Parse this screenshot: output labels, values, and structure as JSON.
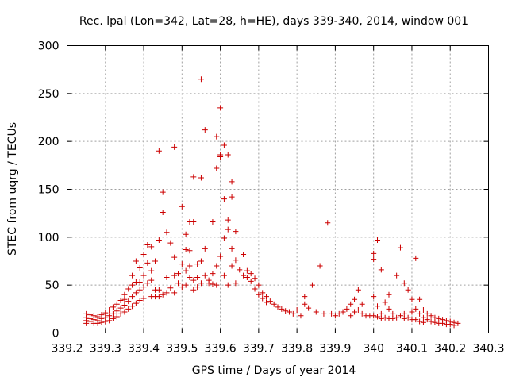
{
  "chart_data": {
    "type": "scatter",
    "title": "Rec. lpal (Lon=342, Lat=28, h=HE), days 339-340, 2014, window 001",
    "xlabel": "GPS time / Days of year 2014",
    "ylabel": "STEC from uqrg / TECUs",
    "xlim": [
      339.2,
      340.3
    ],
    "ylim": [
      0,
      300
    ],
    "x_ticks": [
      339.2,
      339.3,
      339.4,
      339.5,
      339.6,
      339.7,
      339.8,
      339.9,
      340.0,
      340.1,
      340.2,
      340.3
    ],
    "x_tick_labels": [
      "339.2",
      "339.3",
      "339.4",
      "339.5",
      "339.6",
      "339.7",
      "339.8",
      "339.9",
      "340",
      "340.1",
      "340.2",
      "340.3"
    ],
    "y_ticks": [
      0,
      50,
      100,
      150,
      200,
      250,
      300
    ],
    "y_tick_labels": [
      "0",
      "50",
      "100",
      "150",
      "200",
      "250",
      "300"
    ],
    "grid": true,
    "marker": "+",
    "color": "#cc0000",
    "series": [
      {
        "name": "STEC",
        "points": [
          [
            339.25,
            20
          ],
          [
            339.25,
            16
          ],
          [
            339.25,
            13
          ],
          [
            339.25,
            10
          ],
          [
            339.26,
            19
          ],
          [
            339.26,
            15
          ],
          [
            339.26,
            12
          ],
          [
            339.27,
            18
          ],
          [
            339.27,
            14
          ],
          [
            339.27,
            10
          ],
          [
            339.28,
            17
          ],
          [
            339.28,
            13
          ],
          [
            339.28,
            10
          ],
          [
            339.29,
            19
          ],
          [
            339.29,
            15
          ],
          [
            339.29,
            11
          ],
          [
            339.3,
            21
          ],
          [
            339.3,
            16
          ],
          [
            339.3,
            12
          ],
          [
            339.31,
            24
          ],
          [
            339.31,
            18
          ],
          [
            339.31,
            13
          ],
          [
            339.32,
            27
          ],
          [
            339.32,
            20
          ],
          [
            339.32,
            15
          ],
          [
            339.33,
            30
          ],
          [
            339.33,
            23
          ],
          [
            339.33,
            17
          ],
          [
            339.34,
            34
          ],
          [
            339.34,
            26
          ],
          [
            339.34,
            20
          ],
          [
            339.35,
            40
          ],
          [
            339.35,
            29
          ],
          [
            339.35,
            22
          ],
          [
            339.35,
            35
          ],
          [
            339.36,
            46
          ],
          [
            339.36,
            33
          ],
          [
            339.36,
            25
          ],
          [
            339.37,
            50
          ],
          [
            339.37,
            38
          ],
          [
            339.37,
            28
          ],
          [
            339.37,
            60
          ],
          [
            339.38,
            53
          ],
          [
            339.38,
            42
          ],
          [
            339.38,
            31
          ],
          [
            339.38,
            75
          ],
          [
            339.39,
            68
          ],
          [
            339.39,
            53
          ],
          [
            339.39,
            45
          ],
          [
            339.39,
            34
          ],
          [
            339.4,
            82
          ],
          [
            339.4,
            60
          ],
          [
            339.4,
            48
          ],
          [
            339.4,
            36
          ],
          [
            339.41,
            92
          ],
          [
            339.41,
            73
          ],
          [
            339.41,
            52
          ],
          [
            339.42,
            90
          ],
          [
            339.42,
            65
          ],
          [
            339.42,
            55
          ],
          [
            339.42,
            38
          ],
          [
            339.43,
            75
          ],
          [
            339.43,
            45
          ],
          [
            339.43,
            38
          ],
          [
            339.44,
            190
          ],
          [
            339.44,
            97
          ],
          [
            339.44,
            45
          ],
          [
            339.44,
            38
          ],
          [
            339.45,
            147
          ],
          [
            339.45,
            126
          ],
          [
            339.45,
            40
          ],
          [
            339.46,
            105
          ],
          [
            339.46,
            58
          ],
          [
            339.46,
            42
          ],
          [
            339.47,
            94
          ],
          [
            339.47,
            47
          ],
          [
            339.48,
            194
          ],
          [
            339.48,
            79
          ],
          [
            339.48,
            60
          ],
          [
            339.48,
            42
          ],
          [
            339.49,
            62
          ],
          [
            339.49,
            52
          ],
          [
            339.5,
            132
          ],
          [
            339.5,
            72
          ],
          [
            339.5,
            48
          ],
          [
            339.51,
            103
          ],
          [
            339.51,
            87
          ],
          [
            339.51,
            65
          ],
          [
            339.51,
            50
          ],
          [
            339.52,
            116
          ],
          [
            339.52,
            86
          ],
          [
            339.52,
            70
          ],
          [
            339.52,
            58
          ],
          [
            339.53,
            116
          ],
          [
            339.53,
            163
          ],
          [
            339.53,
            55
          ],
          [
            339.53,
            45
          ],
          [
            339.54,
            72
          ],
          [
            339.54,
            58
          ],
          [
            339.54,
            48
          ],
          [
            339.55,
            265
          ],
          [
            339.55,
            162
          ],
          [
            339.55,
            75
          ],
          [
            339.55,
            52
          ],
          [
            339.56,
            212
          ],
          [
            339.56,
            88
          ],
          [
            339.56,
            60
          ],
          [
            339.57,
            55
          ],
          [
            339.57,
            52
          ],
          [
            339.58,
            116
          ],
          [
            339.58,
            62
          ],
          [
            339.58,
            51
          ],
          [
            339.59,
            205
          ],
          [
            339.59,
            172
          ],
          [
            339.59,
            70
          ],
          [
            339.59,
            50
          ],
          [
            339.6,
            235
          ],
          [
            339.6,
            186
          ],
          [
            339.6,
            184
          ],
          [
            339.6,
            80
          ],
          [
            339.61,
            196
          ],
          [
            339.61,
            140
          ],
          [
            339.61,
            99
          ],
          [
            339.61,
            60
          ],
          [
            339.62,
            186
          ],
          [
            339.62,
            118
          ],
          [
            339.62,
            108
          ],
          [
            339.62,
            50
          ],
          [
            339.63,
            158
          ],
          [
            339.63,
            142
          ],
          [
            339.63,
            88
          ],
          [
            339.63,
            70
          ],
          [
            339.64,
            106
          ],
          [
            339.64,
            76
          ],
          [
            339.64,
            52
          ],
          [
            339.65,
            66
          ],
          [
            339.66,
            82
          ],
          [
            339.66,
            60
          ],
          [
            339.67,
            65
          ],
          [
            339.67,
            58
          ],
          [
            339.68,
            62
          ],
          [
            339.68,
            54
          ],
          [
            339.69,
            57
          ],
          [
            339.69,
            46
          ],
          [
            339.7,
            50
          ],
          [
            339.7,
            40
          ],
          [
            339.71,
            42
          ],
          [
            339.71,
            36
          ],
          [
            339.72,
            38
          ],
          [
            339.72,
            32
          ],
          [
            339.73,
            33
          ],
          [
            339.74,
            30
          ],
          [
            339.75,
            27
          ],
          [
            339.76,
            25
          ],
          [
            339.77,
            23
          ],
          [
            339.78,
            22
          ],
          [
            339.79,
            20
          ],
          [
            339.8,
            24
          ],
          [
            339.81,
            18
          ],
          [
            339.82,
            30
          ],
          [
            339.82,
            38
          ],
          [
            339.83,
            26
          ],
          [
            339.84,
            50
          ],
          [
            339.85,
            22
          ],
          [
            339.86,
            70
          ],
          [
            339.87,
            20
          ],
          [
            339.88,
            115
          ],
          [
            339.89,
            20
          ],
          [
            339.9,
            18
          ],
          [
            339.91,
            20
          ],
          [
            339.92,
            22
          ],
          [
            339.93,
            25
          ],
          [
            339.94,
            30
          ],
          [
            339.94,
            18
          ],
          [
            339.95,
            35
          ],
          [
            339.95,
            22
          ],
          [
            339.96,
            45
          ],
          [
            339.96,
            24
          ],
          [
            339.97,
            30
          ],
          [
            339.97,
            20
          ],
          [
            339.98,
            18
          ],
          [
            339.99,
            18
          ],
          [
            340.0,
            83
          ],
          [
            340.0,
            77
          ],
          [
            340.0,
            38
          ],
          [
            340.0,
            18
          ],
          [
            340.01,
            97
          ],
          [
            340.01,
            28
          ],
          [
            340.01,
            17
          ],
          [
            340.02,
            66
          ],
          [
            340.02,
            20
          ],
          [
            340.02,
            15
          ],
          [
            340.03,
            32
          ],
          [
            340.03,
            16
          ],
          [
            340.04,
            40
          ],
          [
            340.04,
            25
          ],
          [
            340.04,
            15
          ],
          [
            340.05,
            20
          ],
          [
            340.05,
            15
          ],
          [
            340.06,
            60
          ],
          [
            340.06,
            16
          ],
          [
            340.07,
            89
          ],
          [
            340.07,
            18
          ],
          [
            340.08,
            52
          ],
          [
            340.08,
            20
          ],
          [
            340.08,
            15
          ],
          [
            340.09,
            45
          ],
          [
            340.09,
            16
          ],
          [
            340.1,
            35
          ],
          [
            340.1,
            22
          ],
          [
            340.1,
            14
          ],
          [
            340.11,
            78
          ],
          [
            340.11,
            25
          ],
          [
            340.11,
            14
          ],
          [
            340.12,
            35
          ],
          [
            340.12,
            20
          ],
          [
            340.12,
            12
          ],
          [
            340.13,
            24
          ],
          [
            340.13,
            16
          ],
          [
            340.13,
            11
          ],
          [
            340.14,
            20
          ],
          [
            340.14,
            14
          ],
          [
            340.15,
            18
          ],
          [
            340.15,
            12
          ],
          [
            340.16,
            16
          ],
          [
            340.16,
            11
          ],
          [
            340.17,
            15
          ],
          [
            340.17,
            10
          ],
          [
            340.18,
            14
          ],
          [
            340.18,
            10
          ],
          [
            340.19,
            13
          ],
          [
            340.19,
            9
          ],
          [
            340.2,
            12
          ],
          [
            340.2,
            9
          ],
          [
            340.21,
            11
          ],
          [
            340.21,
            8
          ],
          [
            340.22,
            10
          ]
        ]
      }
    ]
  }
}
